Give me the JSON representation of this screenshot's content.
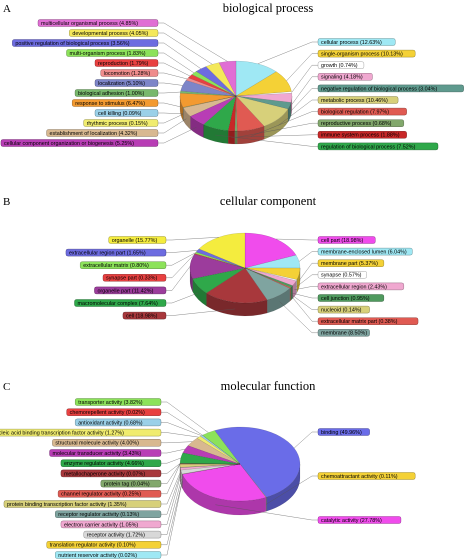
{
  "chart_data": [
    {
      "type": "pie",
      "panel": "A",
      "title": "biological process",
      "slices": [
        {
          "label": "cellular process",
          "value": 12.63,
          "color": "#9fe8f4"
        },
        {
          "label": "single-organism process",
          "value": 10.13,
          "color": "#f4d136"
        },
        {
          "label": "growth",
          "value": 0.74,
          "color": "#ffffff"
        },
        {
          "label": "signaling",
          "value": 4.18,
          "color": "#f0a8d0"
        },
        {
          "label": "negative regulation of biological process",
          "value": 3.04,
          "color": "#5f9a8e"
        },
        {
          "label": "metabolic process",
          "value": 10.46,
          "color": "#d7d07a"
        },
        {
          "label": "biological regulation",
          "value": 7.97,
          "color": "#e05a52"
        },
        {
          "label": "reproductive process",
          "value": 0.68,
          "color": "#82a86c"
        },
        {
          "label": "immune system process",
          "value": 1.88,
          "color": "#c82828"
        },
        {
          "label": "regulation of biological process",
          "value": 7.52,
          "color": "#2fa84a"
        },
        {
          "label": "cellular component organization or biogenesis",
          "value": 5.25,
          "color": "#b83db5"
        },
        {
          "label": "establishment of localization",
          "value": 4.32,
          "color": "#d8b890"
        },
        {
          "label": "rhythmic process",
          "value": 0.15,
          "color": "#f0ec6e"
        },
        {
          "label": "cell killing",
          "value": 0.09,
          "color": "#9ad0e8"
        },
        {
          "label": "response to stimulus",
          "value": 6.47,
          "color": "#f39a30"
        },
        {
          "label": "biological adhesion",
          "value": 1.0,
          "color": "#78b86c"
        },
        {
          "label": "localization",
          "value": 5.1,
          "color": "#7d85c8"
        },
        {
          "label": "locomotion",
          "value": 1.28,
          "color": "#ef8c8c"
        },
        {
          "label": "reproduction",
          "value": 1.79,
          "color": "#e84040"
        },
        {
          "label": "multi-organism process",
          "value": 1.83,
          "color": "#8ce25a"
        },
        {
          "label": "positive regulation of biological process",
          "value": 3.56,
          "color": "#6d6ce0"
        },
        {
          "label": "developmental process",
          "value": 4.05,
          "color": "#f4e85a"
        },
        {
          "label": "multicellular organismal process",
          "value": 4.85,
          "color": "#e06ed4"
        }
      ]
    },
    {
      "type": "pie",
      "panel": "B",
      "title": "cellular component",
      "slices": [
        {
          "label": "cell part",
          "value": 18.98,
          "color": "#f04cec"
        },
        {
          "label": "membrane-enclosed lumen",
          "value": 6.04,
          "color": "#9fe8f4"
        },
        {
          "label": "membrane part",
          "value": 5.37,
          "color": "#f4d136"
        },
        {
          "label": "synapse",
          "value": 0.57,
          "color": "#ffffff"
        },
        {
          "label": "extracellular region",
          "value": 2.43,
          "color": "#f0a8d0"
        },
        {
          "label": "cell junction",
          "value": 0.95,
          "color": "#4f9a5e"
        },
        {
          "label": "nucleoid",
          "value": 0.14,
          "color": "#d7d07a"
        },
        {
          "label": "extracellular matrix part",
          "value": 0.38,
          "color": "#e05a52"
        },
        {
          "label": "membrane",
          "value": 8.5,
          "color": "#7fa4a0"
        },
        {
          "label": "cell",
          "value": 18.98,
          "color": "#a8383c"
        },
        {
          "label": "macromolecular complex",
          "value": 7.64,
          "color": "#2fa84a"
        },
        {
          "label": "organelle part",
          "value": 11.42,
          "color": "#9c3c9c"
        },
        {
          "label": "synapse part",
          "value": 0.33,
          "color": "#e84040"
        },
        {
          "label": "extracellular matrix",
          "value": 0.8,
          "color": "#8ce25a"
        },
        {
          "label": "extracellular region part",
          "value": 1.65,
          "color": "#6d6ce0"
        },
        {
          "label": "organelle",
          "value": 15.77,
          "color": "#f4ec3e"
        }
      ]
    },
    {
      "type": "pie",
      "panel": "C",
      "title": "molecular function",
      "slices": [
        {
          "label": "binding",
          "value": 49.96,
          "color": "#6a6ce8"
        },
        {
          "label": "chemoattractant activity",
          "value": 0.11,
          "color": "#f4d136"
        },
        {
          "label": "catalytic activity",
          "value": 27.78,
          "color": "#f04cec"
        },
        {
          "label": "nutrient reservoir activity",
          "value": 0.02,
          "color": "#9fe8f4"
        },
        {
          "label": "translation regulator activity",
          "value": 0.1,
          "color": "#f4d136"
        },
        {
          "label": "receptor activity",
          "value": 1.72,
          "color": "#d8d8d8"
        },
        {
          "label": "electron carrier activity",
          "value": 1.05,
          "color": "#f0a8d0"
        },
        {
          "label": "receptor regulator activity",
          "value": 0.13,
          "color": "#7fa4a0"
        },
        {
          "label": "protein binding transcription factor activity",
          "value": 1.35,
          "color": "#d7d07a"
        },
        {
          "label": "channel regulator activity",
          "value": 0.25,
          "color": "#e05a52"
        },
        {
          "label": "protein tag",
          "value": 0.04,
          "color": "#82a86c"
        },
        {
          "label": "metallochaperone activity",
          "value": 0.07,
          "color": "#a8383c"
        },
        {
          "label": "enzyme regulator activity",
          "value": 4.66,
          "color": "#2fa84a"
        },
        {
          "label": "molecular transducer activity",
          "value": 3.43,
          "color": "#b83db5"
        },
        {
          "label": "structural molecule activity",
          "value": 4.0,
          "color": "#d8b890"
        },
        {
          "label": "nucleic acid binding transcription factor activity",
          "value": 1.27,
          "color": "#f0ec6e"
        },
        {
          "label": "antioxidant activity",
          "value": 0.68,
          "color": "#9ad0e8"
        },
        {
          "label": "chemorepellent activity",
          "value": 0.02,
          "color": "#e84040"
        },
        {
          "label": "transporter activity",
          "value": 3.82,
          "color": "#8ce25a"
        }
      ]
    }
  ]
}
